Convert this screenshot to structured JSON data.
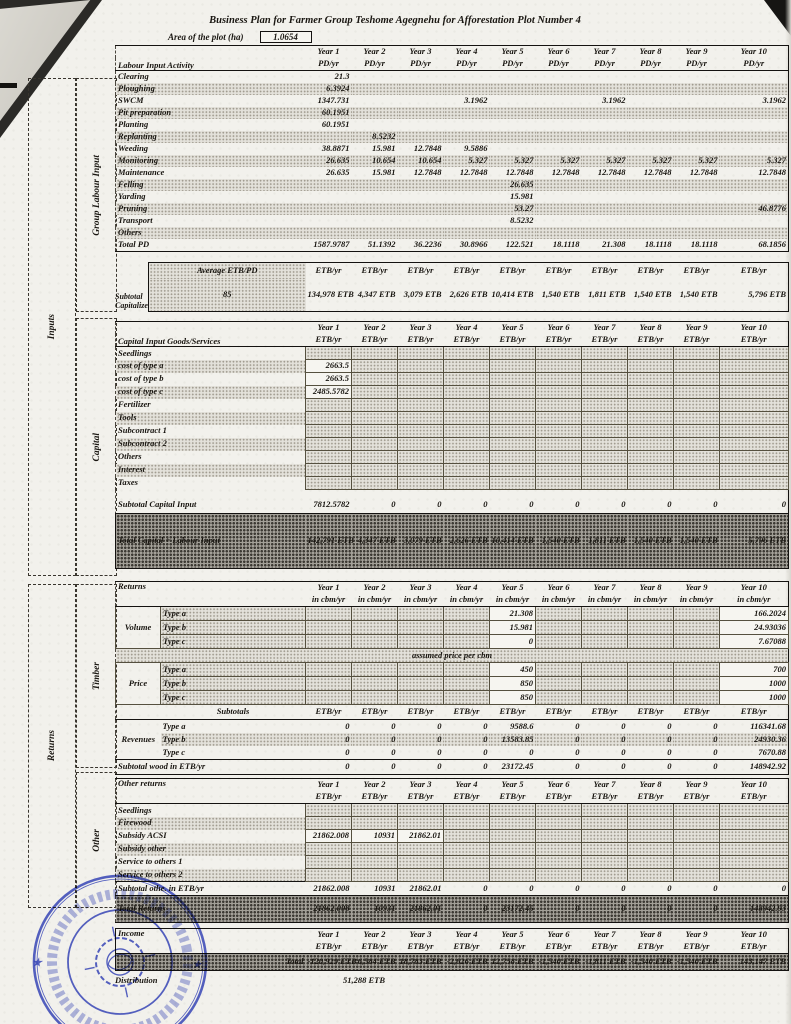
{
  "page": {
    "title": "Business Plan for Farmer Group Teshome Agegnehu for Afforestation Plot Number 4",
    "area_label": "Area of the plot (ha)",
    "area_value": "1.0654"
  },
  "side_labels": {
    "inputs": "Inputs",
    "group_labour": "Group Labour Input",
    "capital": "Capital",
    "returns": "Returns",
    "timber": "Timber",
    "other": "Other"
  },
  "years": [
    "Year 1",
    "Year 2",
    "Year 3",
    "Year 4",
    "Year 5",
    "Year 6",
    "Year 7",
    "Year 8",
    "Year 9",
    "Year 10"
  ],
  "labour": {
    "corner": "Labour Input Activity",
    "unit": "PD/yr",
    "rows": [
      {
        "label": "Clearing",
        "shaded": false,
        "values": [
          "21.3",
          "",
          "",
          "",
          "",
          "",
          "",
          "",
          "",
          ""
        ]
      },
      {
        "label": "Ploughing",
        "shaded": true,
        "values": [
          "6.3924",
          "",
          "",
          "",
          "",
          "",
          "",
          "",
          "",
          ""
        ]
      },
      {
        "label": "SWCM",
        "shaded": false,
        "values": [
          "1347.731",
          "",
          "",
          "3.1962",
          "",
          "",
          "3.1962",
          "",
          "",
          "3.1962"
        ]
      },
      {
        "label": "Pit preparation",
        "shaded": true,
        "values": [
          "60.1951",
          "",
          "",
          "",
          "",
          "",
          "",
          "",
          "",
          ""
        ]
      },
      {
        "label": "Planting",
        "shaded": false,
        "values": [
          "60.1951",
          "",
          "",
          "",
          "",
          "",
          "",
          "",
          "",
          ""
        ]
      },
      {
        "label": "Replanting",
        "shaded": true,
        "values": [
          "",
          "8.5232",
          "",
          "",
          "",
          "",
          "",
          "",
          "",
          ""
        ]
      },
      {
        "label": "Weeding",
        "shaded": false,
        "values": [
          "38.8871",
          "15.981",
          "12.7848",
          "9.5886",
          "",
          "",
          "",
          "",
          "",
          ""
        ]
      },
      {
        "label": "Monitoring",
        "shaded": true,
        "values": [
          "26.635",
          "10.654",
          "10.654",
          "5.327",
          "5.327",
          "5.327",
          "5.327",
          "5.327",
          "5.327",
          "5.327"
        ]
      },
      {
        "label": "Maintenance",
        "shaded": false,
        "values": [
          "26.635",
          "15.981",
          "12.7848",
          "12.7848",
          "12.7848",
          "12.7848",
          "12.7848",
          "12.7848",
          "12.7848",
          "12.7848"
        ]
      },
      {
        "label": "Felling",
        "shaded": true,
        "values": [
          "",
          "",
          "",
          "",
          "26.635",
          "",
          "",
          "",
          "",
          ""
        ]
      },
      {
        "label": "Yarding",
        "shaded": false,
        "values": [
          "",
          "",
          "",
          "",
          "15.981",
          "",
          "",
          "",
          "",
          ""
        ]
      },
      {
        "label": "Pruning",
        "shaded": true,
        "values": [
          "",
          "",
          "",
          "",
          "53.27",
          "",
          "",
          "",
          "",
          "46.8776"
        ]
      },
      {
        "label": "Transport",
        "shaded": false,
        "values": [
          "",
          "",
          "",
          "",
          "8.5232",
          "",
          "",
          "",
          "",
          ""
        ]
      },
      {
        "label": "Others",
        "shaded": true,
        "values": [
          "",
          "",
          "",
          "",
          "",
          "",
          "",
          "",
          "",
          ""
        ]
      }
    ],
    "total": {
      "label": "Total PD",
      "values": [
        "1587.9787",
        "51.1392",
        "36.2236",
        "30.8966",
        "122.521",
        "18.1118",
        "21.308",
        "18.1118",
        "18.1118",
        "68.1856"
      ]
    }
  },
  "subtotal_capitalized": {
    "label": "Subtotal Capitalized",
    "avg_header": "Average ETB/PD",
    "avg_value": "85",
    "unit": "ETB/yr",
    "values": [
      "134,978 ETB",
      "4,347 ETB",
      "3,079 ETB",
      "2,626 ETB",
      "10,414 ETB",
      "1,540 ETB",
      "1,811 ETB",
      "1,540 ETB",
      "1,540 ETB",
      "5,796 ETB"
    ]
  },
  "capital": {
    "corner": "Capital Input Goods/Services",
    "unit": "ETB/yr",
    "rows": [
      {
        "label": "Seedlings",
        "indent": 1,
        "shaded": false,
        "values": [
          "",
          "",
          "",
          "",
          "",
          "",
          "",
          "",
          "",
          ""
        ]
      },
      {
        "label": "cost of type a",
        "indent": 2,
        "shaded": true,
        "values": [
          "2663.5",
          "",
          "",
          "",
          "",
          "",
          "",
          "",
          "",
          ""
        ]
      },
      {
        "label": "cost of type b",
        "indent": 2,
        "shaded": false,
        "values": [
          "2663.5",
          "",
          "",
          "",
          "",
          "",
          "",
          "",
          "",
          ""
        ]
      },
      {
        "label": "cost of type c",
        "indent": 2,
        "shaded": true,
        "values": [
          "2485.5782",
          "",
          "",
          "",
          "",
          "",
          "",
          "",
          "",
          ""
        ]
      },
      {
        "label": "Fertilizer",
        "indent": 1,
        "shaded": false,
        "values": [
          "",
          "",
          "",
          "",
          "",
          "",
          "",
          "",
          "",
          ""
        ]
      },
      {
        "label": "Tools",
        "indent": 1,
        "shaded": true,
        "values": [
          "",
          "",
          "",
          "",
          "",
          "",
          "",
          "",
          "",
          ""
        ]
      },
      {
        "label": "Subcontract 1",
        "indent": 1,
        "shaded": false,
        "values": [
          "",
          "",
          "",
          "",
          "",
          "",
          "",
          "",
          "",
          ""
        ]
      },
      {
        "label": "Subcontract 2",
        "indent": 1,
        "shaded": true,
        "values": [
          "",
          "",
          "",
          "",
          "",
          "",
          "",
          "",
          "",
          ""
        ]
      },
      {
        "label": "Others",
        "indent": 1,
        "shaded": false,
        "values": [
          "",
          "",
          "",
          "",
          "",
          "",
          "",
          "",
          "",
          ""
        ]
      },
      {
        "label": "Interest",
        "indent": 1,
        "shaded": true,
        "values": [
          "",
          "",
          "",
          "",
          "",
          "",
          "",
          "",
          "",
          ""
        ]
      },
      {
        "label": "Taxes",
        "indent": 1,
        "shaded": false,
        "values": [
          "",
          "",
          "",
          "",
          "",
          "",
          "",
          "",
          "",
          ""
        ]
      }
    ],
    "subtotal": {
      "label": "Subtotal Capital Input",
      "values": [
        "7812.5782",
        "0",
        "0",
        "0",
        "0",
        "0",
        "0",
        "0",
        "0",
        "0"
      ]
    },
    "total": {
      "label": "Total Capital + Labour Input",
      "values": [
        "142,791 ETB",
        "4,347 ETB",
        "3,079 ETB",
        "2,626 ETB",
        "10,414 ETB",
        "1,540 ETB",
        "1,811 ETB",
        "1,540 ETB",
        "1,540 ETB",
        "5,796 ETB"
      ]
    }
  },
  "returns": {
    "corner": "Returns",
    "unit": "in cbm/yr",
    "volume": {
      "group": "Volume",
      "rows": [
        {
          "label": "Type a",
          "values": [
            "",
            "",
            "",
            "",
            "21.308",
            "",
            "",
            "",
            "",
            "166.2024"
          ]
        },
        {
          "label": "Type b",
          "values": [
            "",
            "",
            "",
            "",
            "15.981",
            "",
            "",
            "",
            "",
            "24.93036"
          ]
        },
        {
          "label": "Type c",
          "values": [
            "",
            "",
            "",
            "",
            "0",
            "",
            "",
            "",
            "",
            "7.67088"
          ]
        }
      ]
    },
    "price_note": "assumed price per cbm",
    "price": {
      "group": "Price",
      "rows": [
        {
          "label": "Type a",
          "values": [
            "",
            "",
            "",
            "",
            "450",
            "",
            "",
            "",
            "",
            "700"
          ]
        },
        {
          "label": "Type b",
          "values": [
            "",
            "",
            "",
            "",
            "850",
            "",
            "",
            "",
            "",
            "1000"
          ]
        },
        {
          "label": "Type c",
          "values": [
            "",
            "",
            "",
            "",
            "850",
            "",
            "",
            "",
            "",
            "1000"
          ]
        }
      ]
    },
    "subtotals_label": "Subtotals",
    "subtotals_unit": "ETB/yr",
    "revenues": {
      "group": "Revenues",
      "rows": [
        {
          "label": "Type a",
          "shaded": false,
          "values": [
            "0",
            "0",
            "0",
            "0",
            "9588.6",
            "0",
            "0",
            "0",
            "0",
            "116341.68"
          ]
        },
        {
          "label": "Type b",
          "shaded": true,
          "values": [
            "0",
            "0",
            "0",
            "0",
            "13583.85",
            "0",
            "0",
            "0",
            "0",
            "24930.36"
          ]
        },
        {
          "label": "Type c",
          "shaded": false,
          "values": [
            "0",
            "0",
            "0",
            "0",
            "0",
            "0",
            "0",
            "0",
            "0",
            "7670.88"
          ]
        }
      ]
    },
    "subtotal_wood": {
      "label": "Subtotal wood in ETB/yr",
      "values": [
        "0",
        "0",
        "0",
        "0",
        "23172.45",
        "0",
        "0",
        "0",
        "0",
        "148942.92"
      ]
    }
  },
  "other_returns": {
    "corner": "Other returns",
    "unit": "ETB/yr",
    "rows": [
      {
        "label": "Seedlings",
        "shaded": false,
        "values": [
          "",
          "",
          "",
          "",
          "",
          "",
          "",
          "",
          "",
          ""
        ]
      },
      {
        "label": "Firewood",
        "shaded": true,
        "values": [
          "",
          "",
          "",
          "",
          "",
          "",
          "",
          "",
          "",
          ""
        ]
      },
      {
        "label": "Subsidy ACSI",
        "shaded": false,
        "values": [
          "21862.008",
          "10931",
          "21862.01",
          "",
          "",
          "",
          "",
          "",
          "",
          ""
        ]
      },
      {
        "label": "Subsidy other",
        "shaded": true,
        "values": [
          "",
          "",
          "",
          "",
          "",
          "",
          "",
          "",
          "",
          ""
        ]
      },
      {
        "label": "Service to others 1",
        "shaded": false,
        "values": [
          "",
          "",
          "",
          "",
          "",
          "",
          "",
          "",
          "",
          ""
        ]
      },
      {
        "label": "Service to others 2",
        "shaded": true,
        "values": [
          "",
          "",
          "",
          "",
          "",
          "",
          "",
          "",
          "",
          ""
        ]
      }
    ],
    "subtotal": {
      "label": "Subtotal othe. in ETB/yr",
      "values": [
        "21862.008",
        "10931",
        "21862.01",
        "0",
        "0",
        "0",
        "0",
        "0",
        "0",
        "0"
      ]
    },
    "total": {
      "label": "Total Returns",
      "values": [
        "21862.008",
        "10931",
        "21862.01",
        "0",
        "23172.45",
        "0",
        "0",
        "0",
        "0",
        "148942.93"
      ]
    }
  },
  "income": {
    "corner": "Income",
    "unit": "ETB/yr",
    "total": {
      "label": "Total",
      "values": [
        "-120,929 ETB",
        "6,584 ETB",
        "18,783 ETB",
        "-2,626 ETB",
        "12,758 ETB",
        "-1,540 ETB",
        "-1,811 ETB",
        "-1,540 ETB",
        "-1,540 ETB",
        "143,147 ETB"
      ]
    },
    "distribution": {
      "label": "Distribution",
      "value": "51,288 ETB"
    }
  },
  "stamp": {
    "star": "★",
    "color": "#2e3ec2"
  }
}
